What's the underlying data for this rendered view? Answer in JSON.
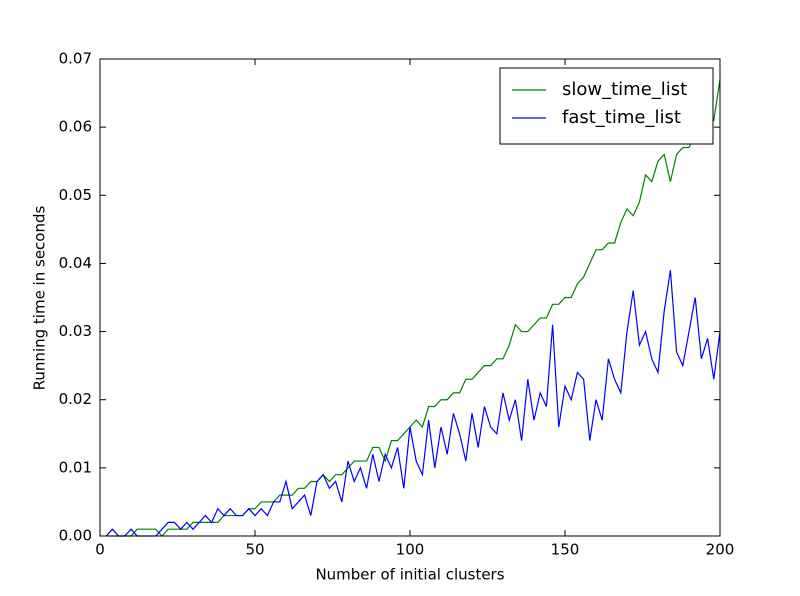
{
  "chart_data": {
    "type": "line",
    "xlabel": "Number of initial clusters",
    "ylabel": "Running time in seconds",
    "xlim": [
      0,
      200
    ],
    "ylim": [
      0,
      0.07
    ],
    "xticks": [
      0,
      50,
      100,
      150,
      200
    ],
    "yticks": [
      {
        "value": 0,
        "label": "0.00"
      },
      {
        "value": 0.01,
        "label": "0.01"
      },
      {
        "value": 0.02,
        "label": "0.02"
      },
      {
        "value": 0.03,
        "label": "0.03"
      },
      {
        "value": 0.04,
        "label": "0.04"
      },
      {
        "value": 0.05,
        "label": "0.05"
      },
      {
        "value": 0.06,
        "label": "0.06"
      },
      {
        "value": 0.07,
        "label": "0.07"
      }
    ],
    "legend": "upper right",
    "x": [
      2,
      4,
      6,
      8,
      10,
      12,
      14,
      16,
      18,
      20,
      22,
      24,
      26,
      28,
      30,
      32,
      34,
      36,
      38,
      40,
      42,
      44,
      46,
      48,
      50,
      52,
      54,
      56,
      58,
      60,
      62,
      64,
      66,
      68,
      70,
      72,
      74,
      76,
      78,
      80,
      82,
      84,
      86,
      88,
      90,
      92,
      94,
      96,
      98,
      100,
      102,
      104,
      106,
      108,
      110,
      112,
      114,
      116,
      118,
      120,
      122,
      124,
      126,
      128,
      130,
      132,
      134,
      136,
      138,
      140,
      142,
      144,
      146,
      148,
      150,
      152,
      154,
      156,
      158,
      160,
      162,
      164,
      166,
      168,
      170,
      172,
      174,
      176,
      178,
      180,
      182,
      184,
      186,
      188,
      190,
      192,
      194,
      196,
      198,
      200
    ],
    "series": [
      {
        "name": "slow_time_list",
        "color": "#008000",
        "values": [
          0,
          0,
          0,
          0,
          0,
          0.001,
          0.001,
          0.001,
          0.001,
          0,
          0.001,
          0.001,
          0.001,
          0.001,
          0.002,
          0.002,
          0.002,
          0.002,
          0.002,
          0.003,
          0.003,
          0.003,
          0.003,
          0.004,
          0.004,
          0.005,
          0.005,
          0.005,
          0.006,
          0.006,
          0.006,
          0.007,
          0.007,
          0.008,
          0.008,
          0.009,
          0.008,
          0.009,
          0.009,
          0.01,
          0.011,
          0.011,
          0.011,
          0.013,
          0.013,
          0.011,
          0.014,
          0.014,
          0.015,
          0.016,
          0.017,
          0.016,
          0.019,
          0.019,
          0.02,
          0.02,
          0.021,
          0.021,
          0.023,
          0.023,
          0.024,
          0.025,
          0.025,
          0.026,
          0.026,
          0.028,
          0.031,
          0.03,
          0.03,
          0.031,
          0.032,
          0.032,
          0.034,
          0.034,
          0.035,
          0.035,
          0.037,
          0.038,
          0.04,
          0.042,
          0.042,
          0.043,
          0.043,
          0.046,
          0.048,
          0.047,
          0.049,
          0.053,
          0.052,
          0.055,
          0.056,
          0.052,
          0.056,
          0.057,
          0.057,
          0.059,
          0.059,
          0.062,
          0.061,
          0.067
        ]
      },
      {
        "name": "fast_time_list",
        "color": "#0000ff",
        "values": [
          0,
          0.001,
          0,
          0,
          0.001,
          0,
          0,
          0,
          0,
          0.001,
          0.002,
          0.002,
          0.001,
          0.002,
          0.001,
          0.002,
          0.003,
          0.002,
          0.004,
          0.003,
          0.004,
          0.003,
          0.003,
          0.004,
          0.003,
          0.004,
          0.003,
          0.005,
          0.005,
          0.008,
          0.004,
          0.005,
          0.006,
          0.003,
          0.008,
          0.009,
          0.007,
          0.008,
          0.005,
          0.011,
          0.008,
          0.01,
          0.007,
          0.012,
          0.008,
          0.012,
          0.01,
          0.013,
          0.007,
          0.016,
          0.011,
          0.009,
          0.017,
          0.01,
          0.016,
          0.012,
          0.018,
          0.015,
          0.011,
          0.018,
          0.013,
          0.019,
          0.016,
          0.015,
          0.021,
          0.017,
          0.02,
          0.014,
          0.023,
          0.017,
          0.021,
          0.019,
          0.031,
          0.016,
          0.022,
          0.02,
          0.024,
          0.023,
          0.014,
          0.02,
          0.017,
          0.026,
          0.023,
          0.021,
          0.03,
          0.036,
          0.028,
          0.03,
          0.026,
          0.024,
          0.033,
          0.039,
          0.027,
          0.025,
          0.03,
          0.035,
          0.026,
          0.029,
          0.023,
          0.03
        ]
      }
    ]
  }
}
